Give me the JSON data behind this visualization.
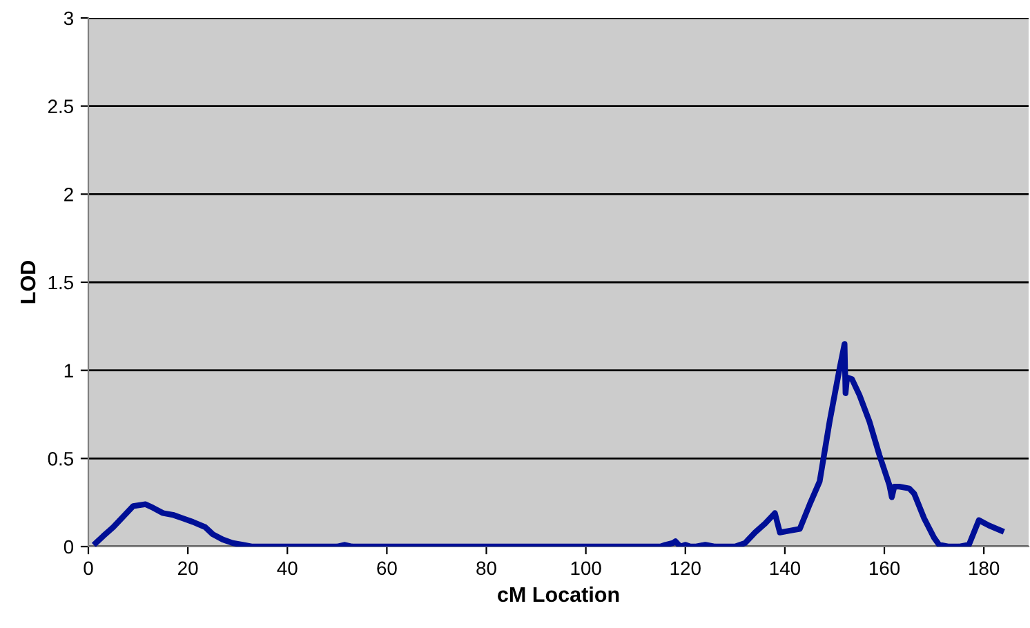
{
  "chart_data": {
    "type": "line",
    "xlabel": "cM Location",
    "ylabel": "LOD",
    "xlim": [
      0,
      189
    ],
    "ylim": [
      0,
      3
    ],
    "xticks": [
      0,
      20,
      40,
      60,
      80,
      100,
      120,
      140,
      160,
      180
    ],
    "yticks": [
      0,
      0.5,
      1,
      1.5,
      2,
      2.5,
      3
    ],
    "grid": "y",
    "marker": "none",
    "line_style": "solid",
    "series": [
      {
        "color": "#000f96",
        "x": [
          1.5,
          3,
          5,
          7,
          9,
          11.5,
          13,
          15,
          17,
          19,
          21,
          23.5,
          25,
          27,
          29,
          31,
          33,
          35,
          40,
          50,
          51.5,
          53,
          60,
          80,
          100,
          110,
          115,
          116,
          117.5,
          118,
          119,
          120,
          121,
          122,
          124,
          126,
          130,
          132,
          134,
          136,
          138,
          139,
          141,
          143,
          145,
          147,
          149,
          151,
          152,
          152.2,
          152.5,
          153.5,
          155,
          157,
          159,
          161,
          161.5,
          162,
          163,
          165,
          166,
          168,
          170,
          171,
          173,
          175,
          177,
          179,
          181,
          183.5
        ],
        "values": [
          0.02,
          0.06,
          0.11,
          0.17,
          0.23,
          0.24,
          0.22,
          0.19,
          0.18,
          0.16,
          0.14,
          0.11,
          0.07,
          0.04,
          0.02,
          0.01,
          0,
          0,
          0,
          0,
          0.01,
          0,
          0,
          0,
          0,
          0,
          0,
          0.01,
          0.02,
          0.03,
          0,
          0.01,
          0,
          0,
          0.01,
          0,
          0,
          0.02,
          0.08,
          0.13,
          0.19,
          0.08,
          0.09,
          0.1,
          0.24,
          0.37,
          0.71,
          1.01,
          1.15,
          0.87,
          0.96,
          0.95,
          0.86,
          0.71,
          0.52,
          0.35,
          0.28,
          0.34,
          0.34,
          0.33,
          0.3,
          0.16,
          0.05,
          0.01,
          0,
          0,
          0.01,
          0.15,
          0.12,
          0.09
        ]
      }
    ]
  }
}
